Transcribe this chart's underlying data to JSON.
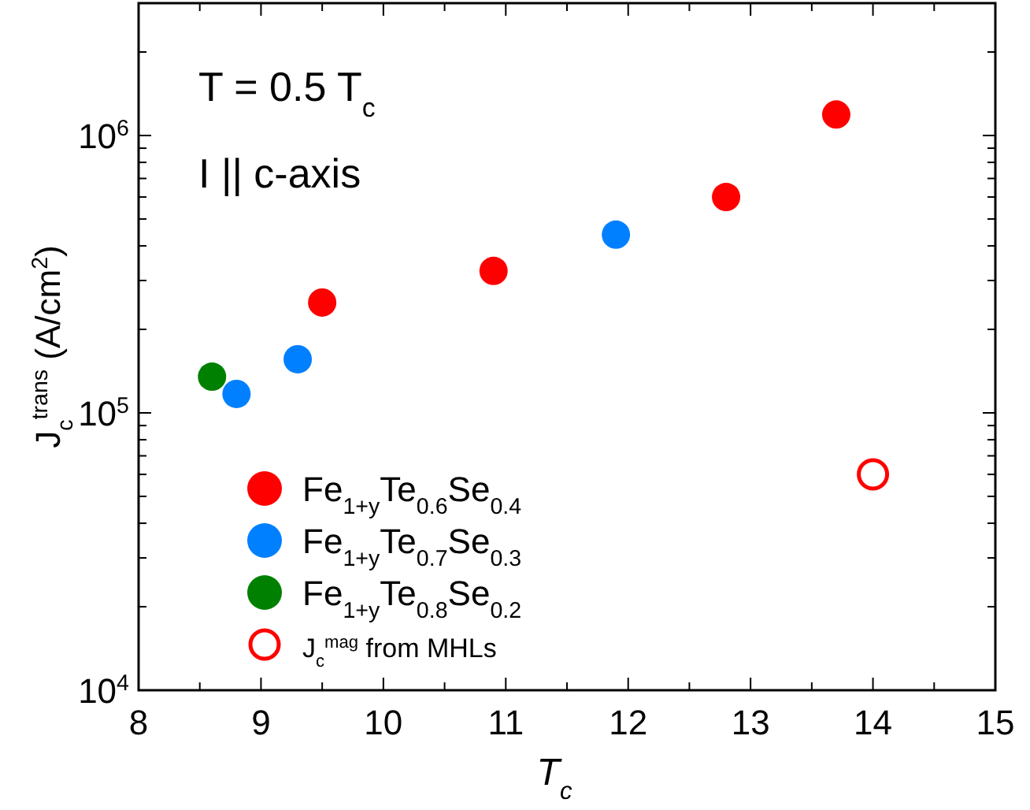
{
  "chart_data": {
    "type": "scatter",
    "xlabel": "T$_{c}$",
    "ylabel": "J$_{c}$$^{trans}$ (A/cm$^{2}$)",
    "annotations": [
      "T = 0.5 T$_{c}$",
      "I || c-axis"
    ],
    "xlim": [
      8,
      15
    ],
    "xticks": [
      8,
      9,
      10,
      11,
      12,
      13,
      14,
      15
    ],
    "ylim": [
      10000,
      3000000
    ],
    "yticks": [
      {
        "value": 10000,
        "label": "10$^{4}$"
      },
      {
        "value": 100000,
        "label": "10$^{5}$"
      },
      {
        "value": 1000000,
        "label": "10$^{6}$"
      }
    ],
    "log": "y",
    "grid": false,
    "legend": "bottom left",
    "marker": "circle",
    "series": [
      {
        "name": "Fe$_{1+y}$Te$_{0.6}$Se$_{0.4}$",
        "color": "#ff0000",
        "x": [
          9.5,
          10.9,
          12.8,
          13.7
        ],
        "values": [
          250000,
          325000,
          600000,
          1190000
        ]
      },
      {
        "name": "Fe$_{1+y}$Te$_{0.7}$Se$_{0.3}$",
        "color": "#0080ff",
        "x": [
          8.8,
          9.3,
          11.9
        ],
        "values": [
          117000,
          156000,
          439000
        ]
      },
      {
        "name": "Fe$_{1+y}$Te$_{0.8}$Se$_{0.2}$",
        "color": "#008000",
        "x": [
          8.6
        ],
        "values": [
          135000
        ]
      },
      {
        "name": "J$_{c}$$^{mag}$ from MHLs",
        "color": "#ff0000",
        "x": [
          14
        ],
        "values": [
          60000
        ]
      }
    ]
  }
}
